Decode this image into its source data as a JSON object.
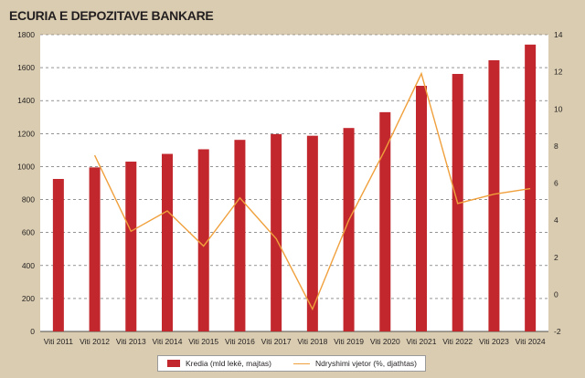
{
  "title": "ECURIA E DEPOZITAVE BANKARE",
  "colors": {
    "bar": "#c1272d",
    "line": "#f0a03c",
    "plot_bg": "#ffffff",
    "grid": "#555555",
    "page_bg": "#d9ccb0"
  },
  "chart_data": {
    "type": "bar",
    "categories": [
      "Viti 2011",
      "Viti 2012",
      "Viti 2013",
      "Viti 2014",
      "Viti 2015",
      "Viti 2016",
      "Viti 2017",
      "Viti 2018",
      "Viti 2019",
      "Viti 2020",
      "Viti 2021",
      "Viti 2022",
      "Viti 2023",
      "Viti 2024"
    ],
    "series": [
      {
        "name": "Kredia (mld lekë, majtas)",
        "type": "bar",
        "axis": "left",
        "values": [
          925,
          995,
          1030,
          1077,
          1105,
          1162,
          1197,
          1187,
          1234,
          1330,
          1490,
          1562,
          1645,
          1740
        ]
      },
      {
        "name": "Ndryshimi vjetor (%, djathtas)",
        "type": "line",
        "axis": "right",
        "values": [
          null,
          7.5,
          3.4,
          4.5,
          2.6,
          5.2,
          3.0,
          -0.8,
          4.0,
          7.8,
          11.9,
          4.9,
          5.4,
          5.7
        ]
      }
    ],
    "y_left": {
      "min": 0,
      "max": 1800,
      "ticks": [
        0,
        200,
        400,
        600,
        800,
        1000,
        1200,
        1400,
        1600,
        1800
      ]
    },
    "y_right": {
      "min": -2,
      "max": 14,
      "ticks": [
        -2,
        0,
        2,
        4,
        6,
        8,
        10,
        12,
        14
      ]
    },
    "grid": "horizontal dashed",
    "legend_position": "bottom"
  }
}
